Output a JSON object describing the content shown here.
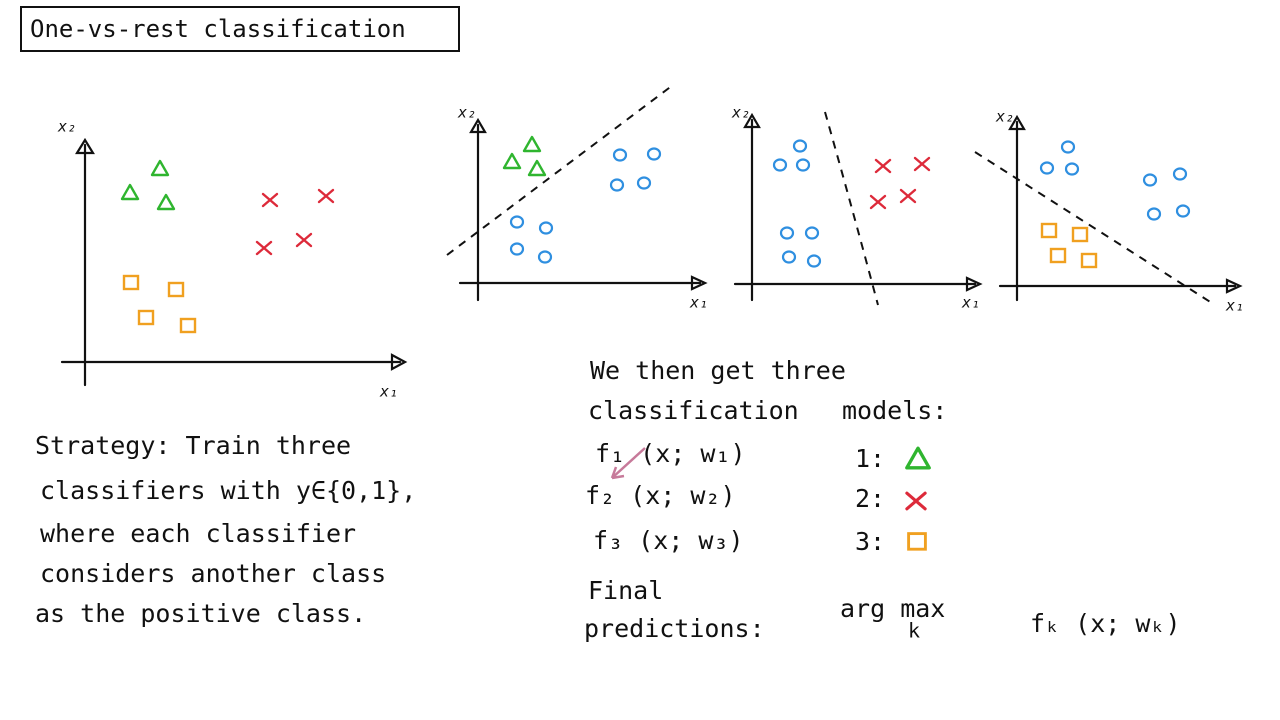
{
  "title": "One-vs-rest classification",
  "plots": [
    {
      "x_label": "x₁",
      "y_label": "x₂"
    },
    {
      "x_label": "x₁",
      "y_label": "x₂"
    },
    {
      "x_label": "x₁",
      "y_label": "x₂"
    },
    {
      "x_label": "x₁",
      "y_label": "x₂"
    }
  ],
  "strategy": {
    "lines": [
      "Strategy: Train three",
      "classifiers with y∈{0,1},",
      "where each classifier",
      "considers another class",
      "as the positive class."
    ]
  },
  "models": {
    "heading": [
      "We then get three",
      "classification",
      "models:"
    ],
    "rows": [
      {
        "function": "f₁ (x; w₁)",
        "index": "1:"
      },
      {
        "function": "f₂ (x; w₂)",
        "index": "2:"
      },
      {
        "function": "f₃ (x; w₃)",
        "index": "3:"
      }
    ]
  },
  "final": {
    "label": [
      "Final",
      "predictions:"
    ],
    "operator": "arg max",
    "operator_subscript": "k",
    "expression": "fₖ (x; wₖ)"
  }
}
